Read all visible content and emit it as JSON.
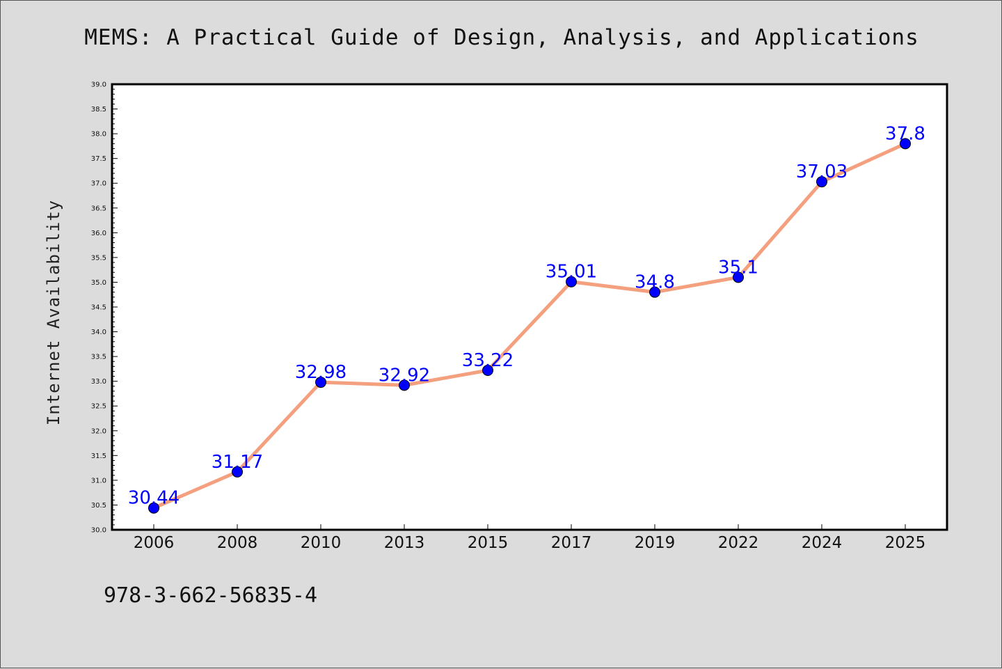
{
  "chart_data": {
    "type": "line",
    "title": "MEMS: A Practical Guide of Design, Analysis, and Applications",
    "xlabel": "",
    "ylabel": "Internet Availability",
    "categories": [
      "2006",
      "2008",
      "2010",
      "2013",
      "2015",
      "2017",
      "2019",
      "2022",
      "2024",
      "2025"
    ],
    "series": [
      {
        "values": [
          30.44,
          31.17,
          32.98,
          32.92,
          33.22,
          35.01,
          34.8,
          35.1,
          37.03,
          37.8
        ],
        "labels": [
          "30.44",
          "31.17",
          "32.98",
          "32.92",
          "33.22",
          "35.01",
          "34.8",
          "35.1",
          "37.03",
          "37.8"
        ],
        "line_color": "#f4a07e",
        "marker_color": "#0000ff"
      }
    ],
    "ylim": [
      30.0,
      39.0
    ],
    "yticks": [
      "30.0",
      "30.5",
      "31.0",
      "31.5",
      "32.0",
      "32.5",
      "33.0",
      "33.5",
      "34.0",
      "34.5",
      "35.0",
      "35.5",
      "36.0",
      "36.5",
      "37.0",
      "37.5",
      "38.0",
      "38.5",
      "39.0"
    ],
    "grid": false,
    "footnote": "978-3-662-56835-4",
    "background_color": "#dcdcdc",
    "plot_background": "#ffffff"
  }
}
